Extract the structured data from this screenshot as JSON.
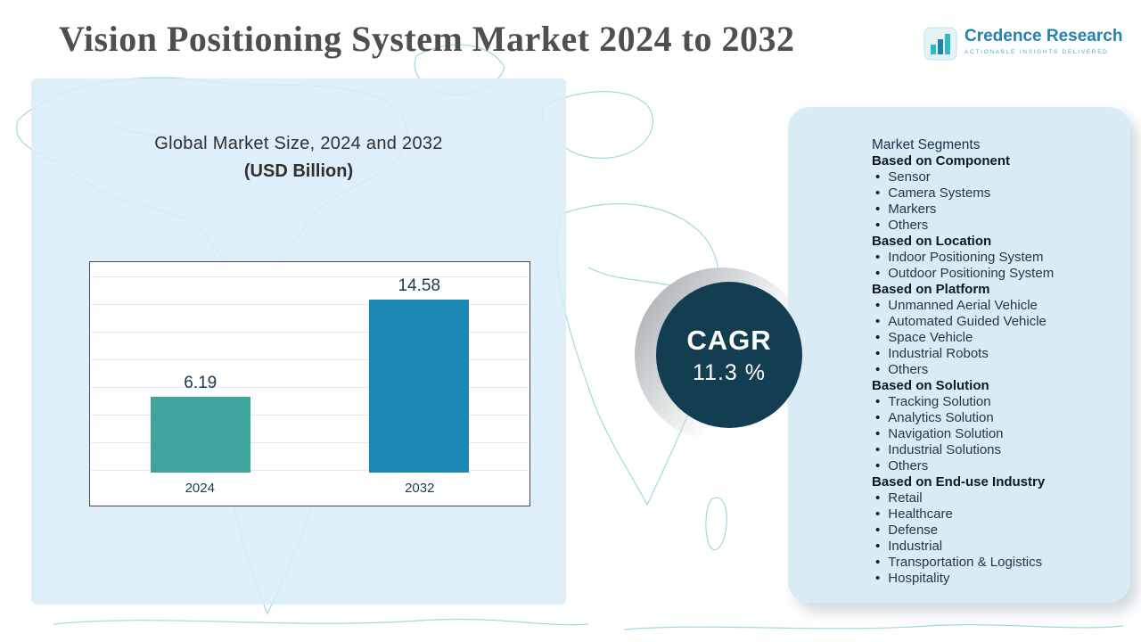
{
  "header": {
    "title": "Vision Positioning System Market 2024 to 2032",
    "logo": {
      "name": "Credence Research",
      "tagline": "Actionable Insights Delivered"
    }
  },
  "chart_panel": {
    "heading_line1": "Global Market Size, 2024 and 2032",
    "heading_line2": "(USD Billion)"
  },
  "chart_data": {
    "type": "bar",
    "title": "Global Market Size, 2024 and 2032 (USD Billion)",
    "categories": [
      "2024",
      "2032"
    ],
    "values": [
      6.19,
      14.58
    ],
    "bar_colors": [
      "#3da49e",
      "#1d87b4"
    ],
    "xlabel": "",
    "ylabel": "USD Billion",
    "ylim": [
      0,
      16
    ],
    "grid": true,
    "legend": false
  },
  "cagr": {
    "label": "CAGR",
    "value": "11.3 %"
  },
  "segments_panel": {
    "title": "Market Segments",
    "groups": [
      {
        "heading": "Based on Component",
        "items": [
          "Sensor",
          "Camera Systems",
          "Markers",
          "Others"
        ]
      },
      {
        "heading": "Based on Location",
        "items": [
          "Indoor Positioning System",
          "Outdoor Positioning System"
        ]
      },
      {
        "heading": "Based on Platform",
        "items": [
          "Unmanned Aerial Vehicle",
          "Automated Guided Vehicle",
          "Space Vehicle",
          "Industrial Robots",
          "Others"
        ]
      },
      {
        "heading": "Based on Solution",
        "items": [
          "Tracking Solution",
          "Analytics Solution",
          "Navigation Solution",
          "Industrial Solutions",
          "Others"
        ]
      },
      {
        "heading": "Based on End-use Industry",
        "items": [
          "Retail",
          "Healthcare",
          "Defense",
          "Industrial",
          "Transportation & Logistics",
          "Hospitality"
        ]
      }
    ]
  },
  "colors": {
    "bar_teal": "#3da49e",
    "bar_blue": "#1d87b4",
    "cagr_circle": "#133e52",
    "panel_blue": "#d9ecf6",
    "map_line": "#8fd2da",
    "logo_blue": "#2382ad"
  }
}
